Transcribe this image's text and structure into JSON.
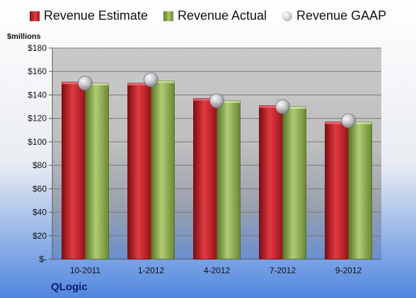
{
  "company": "QLogic",
  "y_unit_label": "$millions",
  "colors": {
    "estimate": "#c8202a",
    "actual": "#8fae52",
    "gaap": "#c0c4cc"
  },
  "chart_data": {
    "type": "bar",
    "categories": [
      "10-2011",
      "1-2012",
      "4-2012",
      "7-2012",
      "9-2012"
    ],
    "series": [
      {
        "name": "Revenue Estimate",
        "values": [
          151,
          150,
          137,
          131,
          117
        ]
      },
      {
        "name": "Revenue Actual",
        "values": [
          150,
          152,
          135,
          130,
          117
        ]
      },
      {
        "name": "Revenue GAAP",
        "values": [
          150,
          153,
          135,
          130,
          118
        ]
      }
    ],
    "ylim": [
      0,
      180
    ],
    "yticks": [
      0,
      20,
      40,
      60,
      80,
      100,
      120,
      140,
      160,
      180
    ],
    "ytick_labels": [
      "$-",
      "$20",
      "$40",
      "$60",
      "$80",
      "$100",
      "$120",
      "$140",
      "$160",
      "$180"
    ],
    "grid": true,
    "legend_position": "top"
  }
}
